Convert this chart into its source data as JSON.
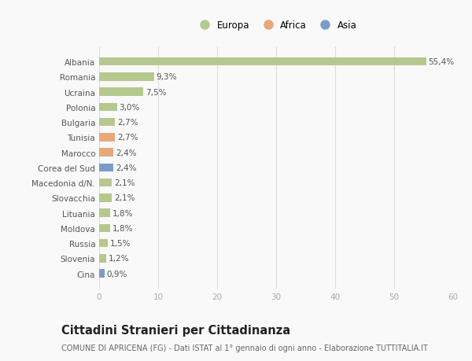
{
  "categories": [
    "Albania",
    "Romania",
    "Ucraina",
    "Polonia",
    "Bulgaria",
    "Tunisia",
    "Marocco",
    "Corea del Sud",
    "Macedonia d/N.",
    "Slovacchia",
    "Lituania",
    "Moldova",
    "Russia",
    "Slovenia",
    "Cina"
  ],
  "values": [
    55.4,
    9.3,
    7.5,
    3.0,
    2.7,
    2.7,
    2.4,
    2.4,
    2.1,
    2.1,
    1.8,
    1.8,
    1.5,
    1.2,
    0.9
  ],
  "labels": [
    "55,4%",
    "9,3%",
    "7,5%",
    "3,0%",
    "2,7%",
    "2,7%",
    "2,4%",
    "2,4%",
    "2,1%",
    "2,1%",
    "1,8%",
    "1,8%",
    "1,5%",
    "1,2%",
    "0,9%"
  ],
  "continents": [
    "Europa",
    "Europa",
    "Europa",
    "Europa",
    "Europa",
    "Africa",
    "Africa",
    "Asia",
    "Europa",
    "Europa",
    "Europa",
    "Europa",
    "Europa",
    "Europa",
    "Asia"
  ],
  "colors": {
    "Europa": "#b5c98e",
    "Africa": "#e8a87c",
    "Asia": "#7b9ec9"
  },
  "legend_labels": [
    "Europa",
    "Africa",
    "Asia"
  ],
  "legend_colors": [
    "#b5c98e",
    "#e8a87c",
    "#7b9ec9"
  ],
  "xlim": [
    0,
    60
  ],
  "xticks": [
    0,
    10,
    20,
    30,
    40,
    50,
    60
  ],
  "title": "Cittadini Stranieri per Cittadinanza",
  "subtitle": "COMUNE DI APRICENA (FG) - Dati ISTAT al 1° gennaio di ogni anno - Elaborazione TUTTITALIA.IT",
  "background_color": "#f9f9f9",
  "plot_bg_color": "#f9f9f9",
  "bar_height": 0.55,
  "label_fontsize": 7.5,
  "tick_fontsize": 7.5,
  "ytick_fontsize": 7.5,
  "xtick_fontsize": 7.5,
  "title_fontsize": 10.5,
  "subtitle_fontsize": 7.0,
  "legend_fontsize": 8.5
}
